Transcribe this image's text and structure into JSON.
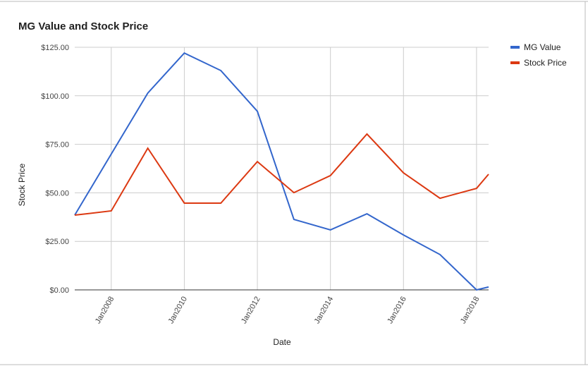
{
  "chart_data": {
    "type": "line",
    "title": "MG Value and Stock Price",
    "x_label": "Date",
    "y_label": "Stock Price",
    "x": [
      2007,
      2008,
      2009,
      2010,
      2011,
      2012,
      2013,
      2014,
      2015,
      2016,
      2017,
      2018,
      2018.33
    ],
    "series": [
      {
        "name": "MG Value",
        "color": "#3366cc",
        "values": [
          38.5,
          70,
          101.4,
          122,
          113,
          92,
          36.3,
          30.9,
          39.2,
          28.3,
          18.2,
          0,
          1.5
        ]
      },
      {
        "name": "Stock Price",
        "color": "#dc3912",
        "values": [
          38.5,
          40.7,
          73,
          44.7,
          44.7,
          66.1,
          50.1,
          58.9,
          80.3,
          60.3,
          47.2,
          52.3,
          59.6
        ]
      }
    ],
    "xlim": [
      2007,
      2018.33
    ],
    "xticks": [
      {
        "value": 2008,
        "label": "Jan2008"
      },
      {
        "value": 2010,
        "label": "Jan2010"
      },
      {
        "value": 2012,
        "label": "Jan2012"
      },
      {
        "value": 2014,
        "label": "Jan2014"
      },
      {
        "value": 2016,
        "label": "Jan2016"
      },
      {
        "value": 2018,
        "label": "Jan2018"
      }
    ],
    "ylim": [
      0,
      125
    ],
    "yticks": [
      {
        "value": 0,
        "label": "$0.00"
      },
      {
        "value": 25,
        "label": "$25.00"
      },
      {
        "value": 50,
        "label": "$50.00"
      },
      {
        "value": 75,
        "label": "$75.00"
      },
      {
        "value": 100,
        "label": "$100.00"
      },
      {
        "value": 125,
        "label": "$125.00"
      }
    ],
    "grid": true,
    "legend": "right"
  }
}
